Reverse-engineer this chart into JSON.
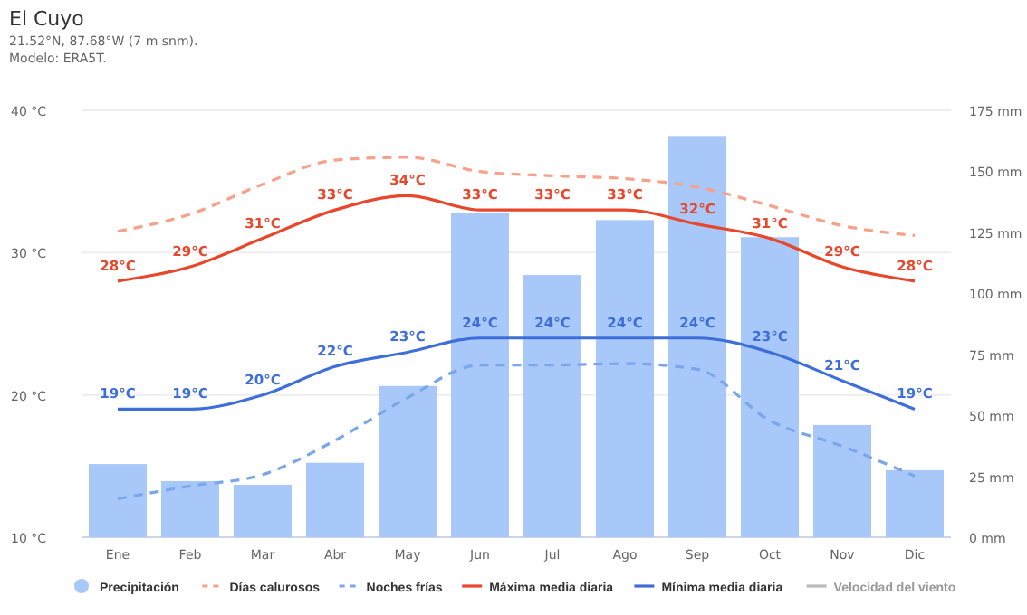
{
  "chart_data": {
    "type": "line",
    "title": "El Cuyo",
    "subtitle": "21.52°N, 87.68°W (7 m snm).\nModelo: ERA5T.",
    "categories": [
      "Ene",
      "Feb",
      "Mar",
      "Abr",
      "May",
      "Jun",
      "Jul",
      "Ago",
      "Sep",
      "Oct",
      "Nov",
      "Dic"
    ],
    "ylim": [
      10,
      40
    ],
    "yticks": [
      {
        "value": 10,
        "label": "10 °C"
      },
      {
        "value": 20,
        "label": "20 °C"
      },
      {
        "value": 30,
        "label": "30 °C"
      },
      {
        "value": 40,
        "label": "40 °C"
      }
    ],
    "y2lim": [
      0,
      175
    ],
    "y2ticks": [
      {
        "value": 0,
        "label": "0 mm"
      },
      {
        "value": 25,
        "label": "25 mm"
      },
      {
        "value": 50,
        "label": "50 mm"
      },
      {
        "value": 75,
        "label": "75 mm"
      },
      {
        "value": 100,
        "label": "100 mm"
      },
      {
        "value": 125,
        "label": "125 mm"
      },
      {
        "value": 150,
        "label": "150 mm"
      },
      {
        "value": 175,
        "label": "175 mm"
      }
    ],
    "grid": "y",
    "legend": "bottom",
    "series": [
      {
        "name": "Precipitación",
        "type": "bar",
        "axis": "y2",
        "color": "#a8c8fa",
        "values": [
          30,
          23,
          21.5,
          30.5,
          62,
          133,
          107.5,
          130,
          164.5,
          123,
          46,
          27.5
        ]
      },
      {
        "name": "Días calurosos",
        "line_style": "dashed",
        "color": "#f7a08a",
        "values": [
          31.5,
          32.7,
          34.8,
          36.5,
          36.7,
          35.7,
          35.4,
          35.2,
          34.6,
          33.3,
          31.9,
          31.2
        ]
      },
      {
        "name": "Noches frías",
        "line_style": "dashed",
        "color": "#7aa6ea",
        "values": [
          12.7,
          13.6,
          14.4,
          16.8,
          19.8,
          22.1,
          22.1,
          22.2,
          21.8,
          18.2,
          16.4,
          14.3
        ]
      },
      {
        "name": "Máxima media diaria",
        "line_style": "solid",
        "color": "#e8472c",
        "values": [
          28,
          29,
          31,
          33,
          34,
          33,
          33,
          33,
          32,
          31,
          29,
          28
        ],
        "value_labels": [
          "28°C",
          "29°C",
          "31°C",
          "33°C",
          "34°C",
          "33°C",
          "33°C",
          "33°C",
          "32°C",
          "31°C",
          "29°C",
          "28°C"
        ]
      },
      {
        "name": "Mínima media diaria",
        "line_style": "solid",
        "color": "#3e6fd8",
        "values": [
          19,
          19,
          20,
          22,
          23,
          24,
          24,
          24,
          24,
          23,
          21,
          19
        ],
        "value_labels": [
          "19°C",
          "19°C",
          "20°C",
          "22°C",
          "23°C",
          "24°C",
          "24°C",
          "24°C",
          "24°C",
          "23°C",
          "21°C",
          "19°C"
        ]
      },
      {
        "name": "Velocidad del viento",
        "line_style": "solid",
        "color": "#bbbbbb",
        "values": [
          null,
          null,
          null,
          null,
          null,
          null,
          null,
          null,
          null,
          null,
          null,
          null
        ]
      }
    ]
  }
}
